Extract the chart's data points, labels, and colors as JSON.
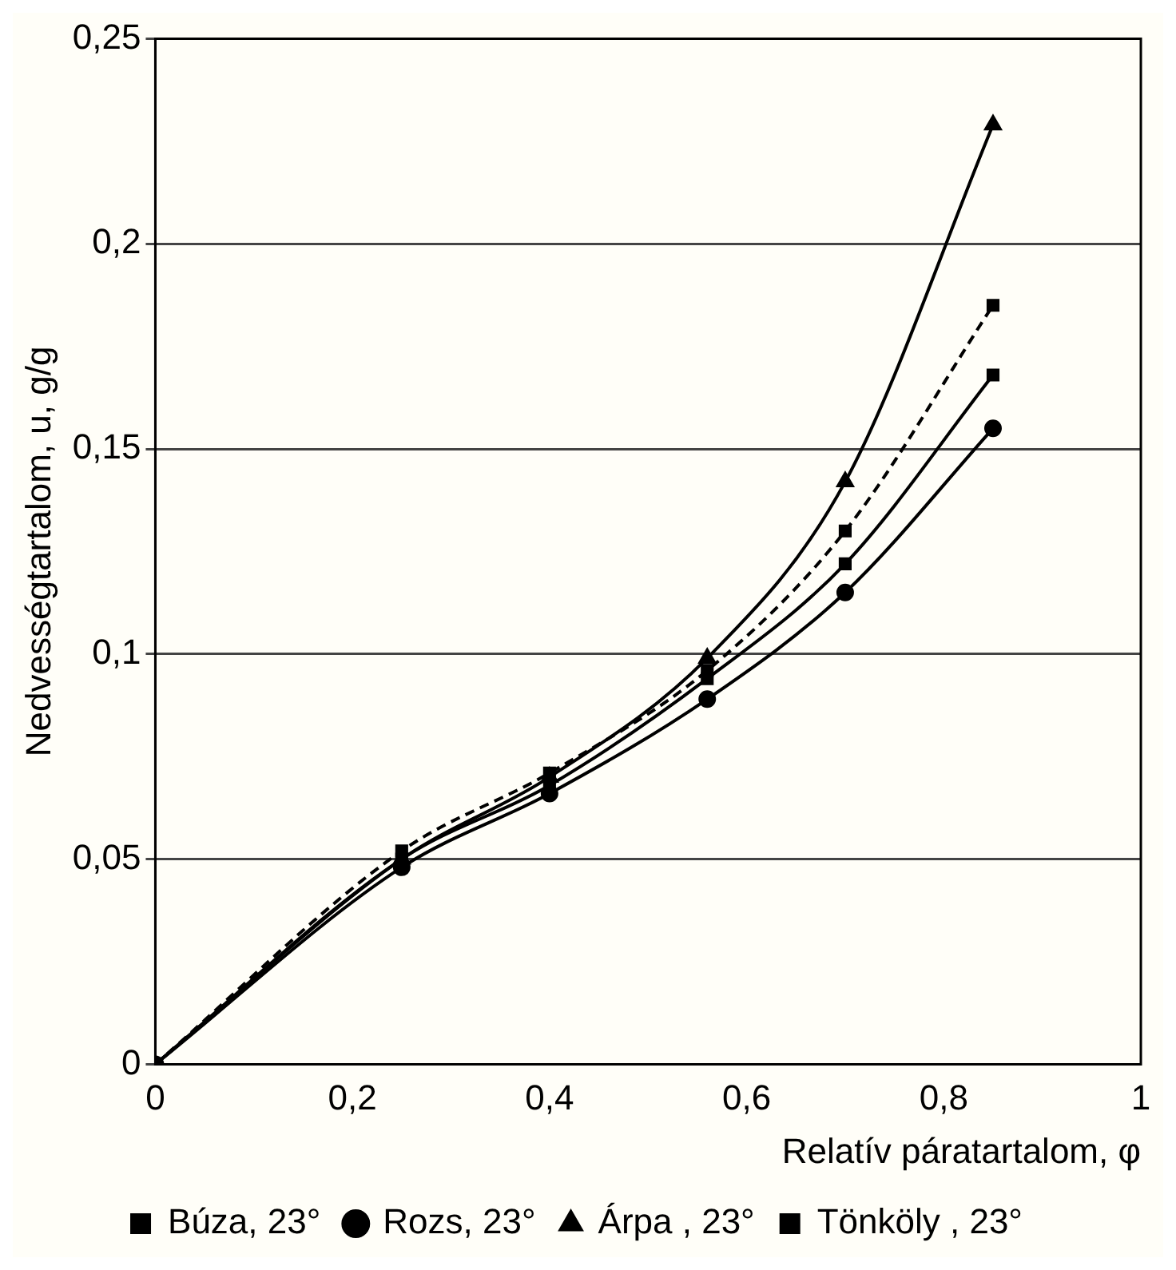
{
  "chart_data": {
    "type": "line",
    "xlabel": "Relatív páratartalom, φ",
    "ylabel": "Nedvességtartalom, u, g/g",
    "x": [
      0,
      0.25,
      0.4,
      0.56,
      0.7,
      0.85
    ],
    "series": [
      {
        "name": "Búza, 23°",
        "color": "#000000",
        "marker": "square",
        "line_style": "solid",
        "values": [
          0,
          0.05,
          0.068,
          0.094,
          0.122,
          0.168
        ]
      },
      {
        "name": "Rozs, 23°",
        "color": "#000000",
        "marker": "circle",
        "line_style": "solid",
        "values": [
          0,
          0.048,
          0.066,
          0.089,
          0.115,
          0.155
        ]
      },
      {
        "name": "Árpa , 23°",
        "color": "#000000",
        "marker": "triangle",
        "line_style": "solid",
        "values": [
          0,
          0.05,
          0.07,
          0.099,
          0.142,
          0.229
        ]
      },
      {
        "name": "Tönköly , 23°",
        "color": "#000000",
        "marker": "square",
        "line_style": "dashed",
        "values": [
          0,
          0.052,
          0.071,
          0.096,
          0.13,
          0.185
        ]
      }
    ],
    "xlim": [
      0,
      1
    ],
    "xticks": [
      0,
      {
        "value": 0.2,
        "label": "0,2"
      },
      {
        "value": 0.4,
        "label": "0,4"
      },
      {
        "value": 0.6,
        "label": "0,6"
      },
      {
        "value": 0.8,
        "label": "0,8"
      },
      1
    ],
    "ylim": [
      0,
      0.25
    ],
    "yticks": [
      0,
      {
        "value": 0.05,
        "label": "0,05"
      },
      {
        "value": 0.1,
        "label": "0,1"
      },
      {
        "value": 0.15,
        "label": "0,15"
      },
      {
        "value": 0.2,
        "label": "0,2"
      },
      {
        "value": 0.25,
        "label": "0,25"
      }
    ],
    "grid": "y",
    "legend": "bottom"
  }
}
